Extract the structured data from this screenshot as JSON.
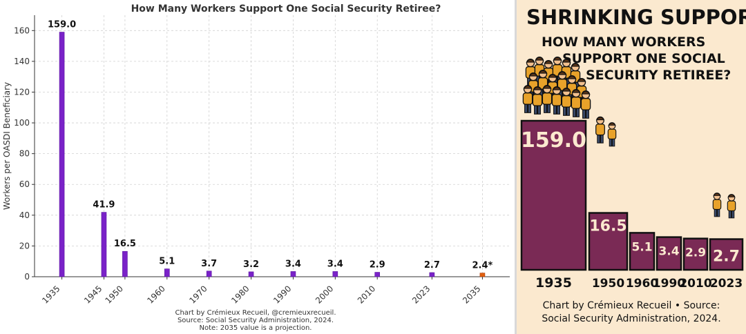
{
  "chart_data": [
    {
      "type": "bar",
      "title": "How Many Workers Support One Social Security Retiree?",
      "xlabel": "",
      "ylabel": "Workers per OASDI Beneficiary",
      "ylim": [
        0,
        170
      ],
      "yticks": [
        0,
        20,
        40,
        60,
        80,
        100,
        120,
        140,
        160
      ],
      "grid": true,
      "categories": [
        "1935",
        "1945",
        "1950",
        "1960",
        "1970",
        "1980",
        "1990",
        "2000",
        "2010",
        "2023",
        "2035"
      ],
      "x": [
        1935,
        1945,
        1950,
        1960,
        1970,
        1980,
        1990,
        2000,
        2010,
        2023,
        2035
      ],
      "values": [
        159.0,
        41.9,
        16.5,
        5.1,
        3.7,
        3.2,
        3.4,
        3.4,
        2.9,
        2.7,
        2.4
      ],
      "value_labels": [
        "159.0",
        "41.9",
        "16.5",
        "5.1",
        "3.7",
        "3.2",
        "3.4",
        "3.4",
        "2.9",
        "2.7",
        "2.4*"
      ],
      "bar_color": "#7a22c8",
      "projection_color": "#e06010",
      "footer": [
        "Chart by Crémieux Recueil, @cremieuxrecueil.",
        "Source: Social Security Administration, 2024.",
        "Note: 2035 value is a projection."
      ]
    },
    {
      "type": "bar",
      "title": "SHRINKING SUPPORT:",
      "subtitle_lines": [
        "HOW MANY WORKERS",
        "SUPPORT ONE SOCIAL",
        "SECURITY RETIREE?"
      ],
      "categories": [
        "1935",
        "1950",
        "1960",
        "1990",
        "2010",
        "2023"
      ],
      "values": [
        159.0,
        16.5,
        5.1,
        3.4,
        2.9,
        2.7
      ],
      "value_labels": [
        "159.0",
        "16.5",
        "5.1",
        "3.4",
        "2.9",
        "2.7"
      ],
      "bar_color": "#7a2a55",
      "background": "#fbe9cf",
      "footer": [
        "Chart by Crémieux Recueil • Source:",
        "Social Security Administration, 2024."
      ]
    }
  ]
}
